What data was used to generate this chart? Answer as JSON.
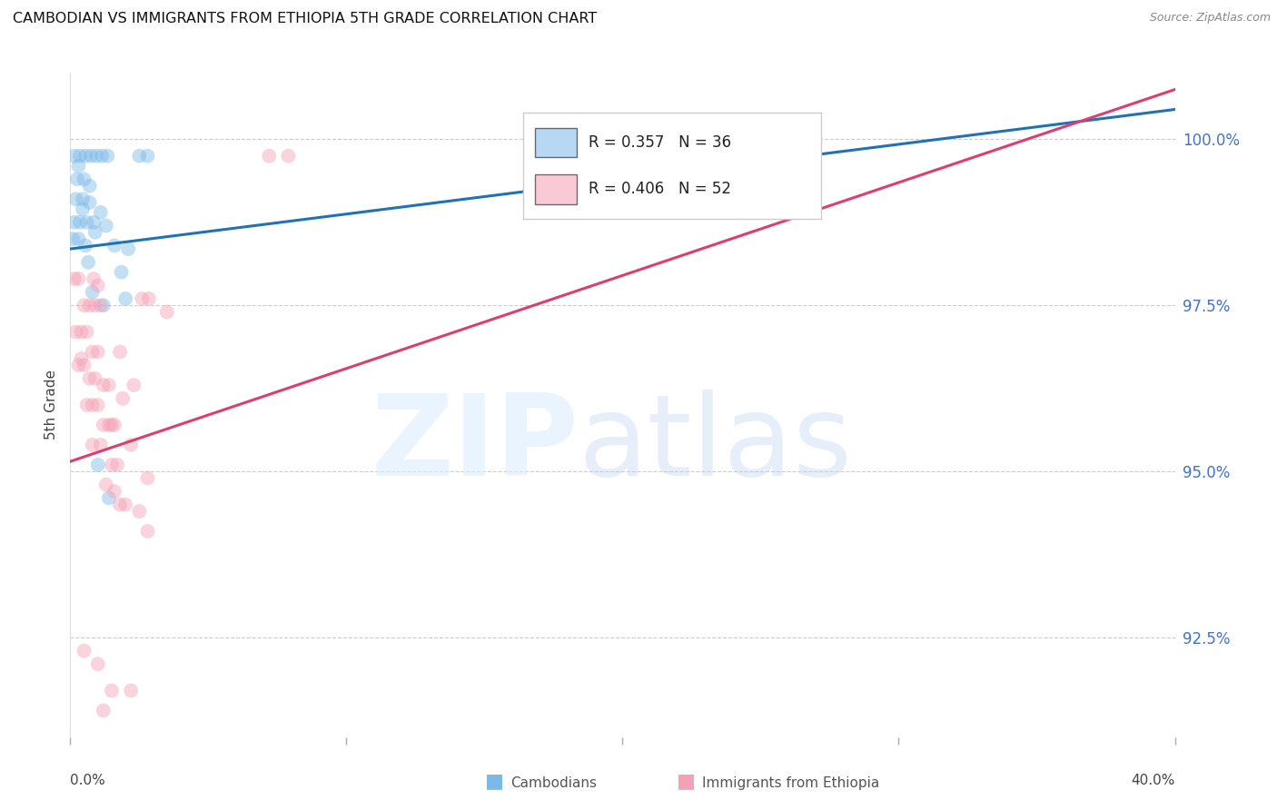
{
  "title": "CAMBODIAN VS IMMIGRANTS FROM ETHIOPIA 5TH GRADE CORRELATION CHART",
  "source": "Source: ZipAtlas.com",
  "ylabel": "5th Grade",
  "y_ticks": [
    92.5,
    95.0,
    97.5,
    100.0
  ],
  "y_tick_labels": [
    "92.5%",
    "95.0%",
    "97.5%",
    "100.0%"
  ],
  "x_lim": [
    0.0,
    40.0
  ],
  "y_lim": [
    91.0,
    101.0
  ],
  "blue_color": "#7ab9e8",
  "pink_color": "#f5a0b5",
  "blue_line_color": "#2171b5",
  "pink_line_color": "#d94070",
  "blue_scatter": [
    [
      0.15,
      99.75
    ],
    [
      0.35,
      99.75
    ],
    [
      0.55,
      99.75
    ],
    [
      0.75,
      99.75
    ],
    [
      0.95,
      99.75
    ],
    [
      1.15,
      99.75
    ],
    [
      1.35,
      99.75
    ],
    [
      0.25,
      99.4
    ],
    [
      0.5,
      99.4
    ],
    [
      0.2,
      99.1
    ],
    [
      0.45,
      99.1
    ],
    [
      0.7,
      99.05
    ],
    [
      0.15,
      98.75
    ],
    [
      0.35,
      98.75
    ],
    [
      0.6,
      98.75
    ],
    [
      0.85,
      98.75
    ],
    [
      0.1,
      98.5
    ],
    [
      0.3,
      98.5
    ],
    [
      0.55,
      98.4
    ],
    [
      1.3,
      98.7
    ],
    [
      1.6,
      98.4
    ],
    [
      2.1,
      98.35
    ],
    [
      0.8,
      97.7
    ],
    [
      1.2,
      97.5
    ],
    [
      2.0,
      97.6
    ],
    [
      1.0,
      95.1
    ],
    [
      1.4,
      94.6
    ],
    [
      0.65,
      98.15
    ],
    [
      2.5,
      99.75
    ],
    [
      2.8,
      99.75
    ],
    [
      1.85,
      98.0
    ],
    [
      0.45,
      98.95
    ],
    [
      0.9,
      98.6
    ],
    [
      0.3,
      99.6
    ],
    [
      0.7,
      99.3
    ],
    [
      1.1,
      98.9
    ]
  ],
  "pink_scatter": [
    [
      0.15,
      97.9
    ],
    [
      0.3,
      97.9
    ],
    [
      0.5,
      97.5
    ],
    [
      0.7,
      97.5
    ],
    [
      0.9,
      97.5
    ],
    [
      1.1,
      97.5
    ],
    [
      0.2,
      97.1
    ],
    [
      0.4,
      97.1
    ],
    [
      0.6,
      97.1
    ],
    [
      0.8,
      96.8
    ],
    [
      1.0,
      96.8
    ],
    [
      0.3,
      96.6
    ],
    [
      0.5,
      96.6
    ],
    [
      0.7,
      96.4
    ],
    [
      0.9,
      96.4
    ],
    [
      1.2,
      96.3
    ],
    [
      1.4,
      96.3
    ],
    [
      0.6,
      96.0
    ],
    [
      0.8,
      96.0
    ],
    [
      1.0,
      96.0
    ],
    [
      1.2,
      95.7
    ],
    [
      1.4,
      95.7
    ],
    [
      1.6,
      95.7
    ],
    [
      0.8,
      95.4
    ],
    [
      1.1,
      95.4
    ],
    [
      1.5,
      95.1
    ],
    [
      1.7,
      95.1
    ],
    [
      1.3,
      94.8
    ],
    [
      1.6,
      94.7
    ],
    [
      1.8,
      94.5
    ],
    [
      2.0,
      94.5
    ],
    [
      1.0,
      97.8
    ],
    [
      1.9,
      96.1
    ],
    [
      2.2,
      95.4
    ],
    [
      2.5,
      94.4
    ],
    [
      2.8,
      94.1
    ],
    [
      1.8,
      96.8
    ],
    [
      2.3,
      96.3
    ],
    [
      1.5,
      95.7
    ],
    [
      0.5,
      92.3
    ],
    [
      1.0,
      92.1
    ],
    [
      1.5,
      91.7
    ],
    [
      1.2,
      91.4
    ],
    [
      2.2,
      91.7
    ],
    [
      2.8,
      94.9
    ],
    [
      3.5,
      97.4
    ],
    [
      0.85,
      97.9
    ],
    [
      0.4,
      96.7
    ],
    [
      2.6,
      97.6
    ],
    [
      2.85,
      97.6
    ],
    [
      7.2,
      99.75
    ],
    [
      7.9,
      99.75
    ]
  ],
  "blue_line": [
    [
      0.0,
      98.35
    ],
    [
      40.0,
      100.45
    ]
  ],
  "pink_line": [
    [
      0.0,
      95.15
    ],
    [
      40.0,
      100.75
    ]
  ],
  "x_tick_positions": [
    0,
    10,
    20,
    30,
    40
  ],
  "legend_entries": [
    {
      "color": "#7ab9e8",
      "text": "R = 0.357   N = 36"
    },
    {
      "color": "#f5a0b5",
      "text": "R = 0.406   N = 52"
    }
  ],
  "bottom_legend": [
    {
      "color": "#7ab9e8",
      "label": "Cambodians"
    },
    {
      "color": "#f5a0b5",
      "label": "Immigrants from Ethiopia"
    }
  ]
}
